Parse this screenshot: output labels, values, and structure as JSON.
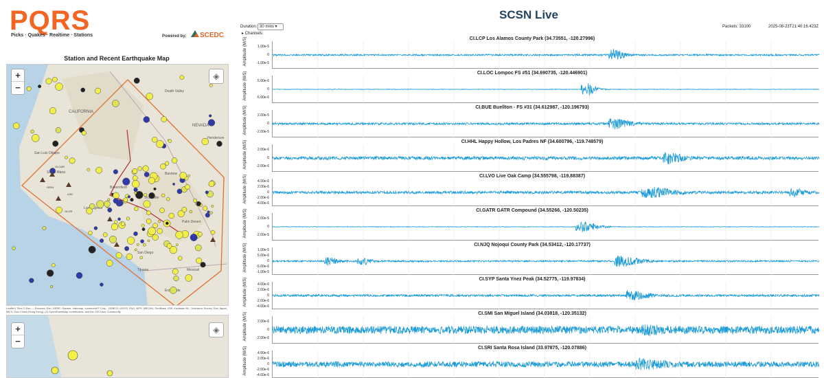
{
  "brand": {
    "logo": "PQRS",
    "tagline": "Picks · Quakes · Realtime · Stations",
    "powered_by": "Powered by:",
    "partner": "SCEDC"
  },
  "map": {
    "title": "Station and Recent Earthquake Map",
    "zoom_in": "+",
    "zoom_out": "−",
    "attribution": "Leaflet | Tiles © Esri — Sources: Esri, HERE, Garmin, Intermap, increment P Corp., GEBCO, USGS, FAO, NPS, NRCAN, GeoBase, IGN, Kadaster NL, Ordnance Survey, Esri Japan, METI, Esri China (Hong Kong), (c) OpenStreetMap contributors, and the GIS User Community",
    "place_labels": [
      "CALIFORNIA",
      "NEVADA",
      "Santa Maria",
      "Los Angeles",
      "San Diego",
      "Tijuana",
      "Ensenada",
      "Mexicali",
      "San Luis Obispo",
      "Death Valley",
      "Barstow",
      "Palm Desert",
      "Henderson",
      "Victorville",
      "Bakersfield"
    ],
    "station_codes": [
      "OLGAR",
      "GR04",
      "LMC",
      "OLGR"
    ]
  },
  "header": {
    "title": "SCSN Live",
    "duration_label": "Duration:",
    "duration_value": "30 mins",
    "channels_label": "▸ Channels:",
    "packets": "Packets: 33100",
    "timestamp": "2025-08-23T21:40:16.423Z"
  },
  "colors": {
    "trace": "#1a9ad6",
    "accent": "#f26522",
    "title": "#23425c"
  },
  "plots": [
    {
      "title": "CI.LCP Los Alamos County Park (34.73551, -120.27996)",
      "ylabel": "Amplitude (M/S)",
      "ticks": [
        "1.00e-5",
        "0",
        "-1.00e-5"
      ]
    },
    {
      "title": "CI.LOC Lompoc FS #51 (34.690735, -120.446901)",
      "ylabel": "Amplitude (M/S)",
      "ticks": [
        "5.00e-6",
        "0",
        "-5.00e-6"
      ]
    },
    {
      "title": "CI.BUE Buellton - FS #31 (34.612987, -120.196793)",
      "ylabel": "Amplitude (M/S)",
      "ticks": [
        "2.00e-5",
        "0",
        "-2.00e-5"
      ]
    },
    {
      "title": "CI.HHL Happy Hollow, Los Padres NF (34.600796, -119.748579)",
      "ylabel": "Amplitude (M/S)",
      "ticks": [
        "2.00e-6",
        "0",
        "-2.00e-6"
      ]
    },
    {
      "title": "CI.LVO Live Oak Camp (34.555798, -119.88387)",
      "ylabel": "Amplitude (M/S)",
      "ticks": [
        "4.00e-6",
        "2.00e-6",
        "0",
        "-2.00e-6",
        "-4.00e-6"
      ]
    },
    {
      "title": "CI.GATR GATR Compound (34.55266, -120.50235)",
      "ylabel": "Amplitude (M/S)",
      "ticks": [
        "2.00e-5",
        "0",
        "-2.00e-5"
      ]
    },
    {
      "title": "CI.NJQ Nojoqui County Park (34.53412, -120.17737)",
      "ylabel": "Amplitude (M/S)",
      "ticks": [
        "1.00e-5",
        "5.00e-6",
        "0",
        "-5.00e-6",
        "-1.00e-5"
      ]
    },
    {
      "title": "CI.SYP Santa Ynez Peak (34.52775, -119.97834)",
      "ylabel": "Amplitude (M/S)",
      "ticks": [
        "4.00e-6",
        "2.00e-6",
        "0",
        "-2.00e-6",
        "-4.00e-6"
      ]
    },
    {
      "title": "CI.SMI San Miguel Island (34.03818, -120.35132)",
      "ylabel": "Amplitude (M/S)",
      "ticks": [
        "2.00e-6",
        "0",
        "-2.00e-6"
      ]
    },
    {
      "title": "CI.SRI Santa Rosa Island (33.97875, -120.07886)",
      "ylabel": "Amplitude (M/S)",
      "ticks": [
        "4.00e-6",
        "2.00e-6",
        "0",
        "-2.00e-6",
        "-4.00e-6"
      ]
    }
  ]
}
